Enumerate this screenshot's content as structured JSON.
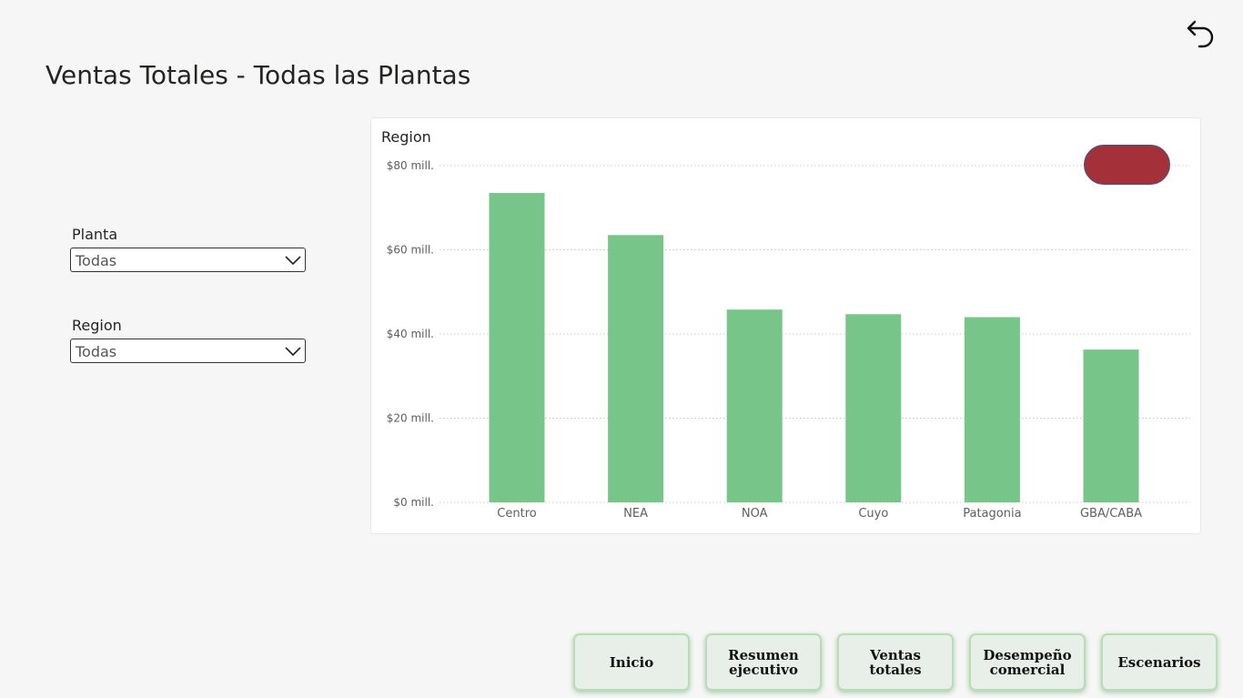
{
  "header": {
    "title": "Ventas Totales - Todas las Plantas",
    "back_icon": "back-arrow-icon"
  },
  "filters": {
    "planta": {
      "label": "Planta",
      "value": "Todas"
    },
    "region": {
      "label": "Region",
      "value": "Todas"
    }
  },
  "chart_data": {
    "type": "bar",
    "title": "Region",
    "categories": [
      "Centro",
      "NEA",
      "NOA",
      "Cuyo",
      "Patagonia",
      "GBA/CABA"
    ],
    "values": [
      73.5,
      63.5,
      45.8,
      44.7,
      44.0,
      36.3
    ],
    "ylim": [
      0,
      80
    ],
    "yticks": [
      0,
      20,
      40,
      60,
      80
    ],
    "ytick_labels": [
      "$0 mill.",
      "$20 mill.",
      "$40 mill.",
      "$60 mill.",
      "$80 mill."
    ],
    "grid": true,
    "bar_color": "#78c589",
    "legend_color": "#a4313a"
  },
  "nav": {
    "buttons": [
      {
        "label": "Inicio"
      },
      {
        "label": "Resumen\nejecutivo"
      },
      {
        "label": "Ventas\ntotales"
      },
      {
        "label": "Desempeño\ncomercial"
      },
      {
        "label": "Escenarios"
      }
    ]
  }
}
